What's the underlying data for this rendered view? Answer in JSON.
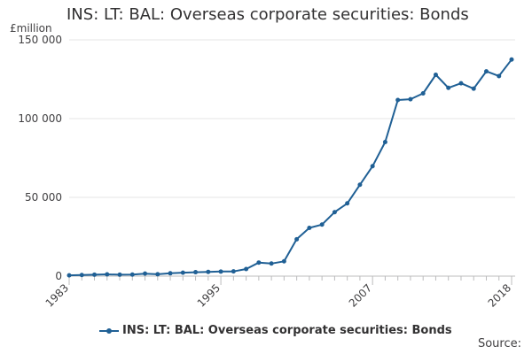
{
  "chart_data": {
    "type": "line",
    "title": "INS: LT: BAL: Overseas corporate securities: Bonds",
    "ylabel": "£million",
    "ylim": [
      0,
      150000
    ],
    "yticks": [
      0,
      50000,
      100000,
      150000
    ],
    "ytick_labels": [
      "0",
      "50 000",
      "100 000",
      "150 000"
    ],
    "xlim": [
      1983,
      2018
    ],
    "xticks": [
      1983,
      1995,
      2007,
      2018
    ],
    "xtick_labels": [
      "1983",
      "1995",
      "2007",
      "2018"
    ],
    "grid": true,
    "legend_position": "bottom",
    "series": [
      {
        "name": "INS: LT: BAL: Overseas corporate securities: Bonds",
        "color": "#206095",
        "x": [
          1983,
          1984,
          1985,
          1986,
          1987,
          1988,
          1989,
          1990,
          1991,
          1992,
          1993,
          1994,
          1995,
          1996,
          1997,
          1998,
          1999,
          2000,
          2001,
          2002,
          2003,
          2004,
          2005,
          2006,
          2007,
          2008,
          2009,
          2010,
          2011,
          2012,
          2013,
          2014,
          2015,
          2016,
          2017,
          2018
        ],
        "values": [
          500,
          700,
          900,
          1100,
          900,
          1000,
          1600,
          1200,
          1800,
          2200,
          2500,
          2700,
          2900,
          3000,
          4500,
          8600,
          8000,
          9400,
          23400,
          30600,
          32700,
          40600,
          46200,
          58000,
          69800,
          85100,
          111800,
          112300,
          116000,
          127800,
          119500,
          122400,
          119000,
          130000,
          127000,
          137500
        ]
      }
    ]
  },
  "footer": {
    "source_label": "Source:"
  }
}
